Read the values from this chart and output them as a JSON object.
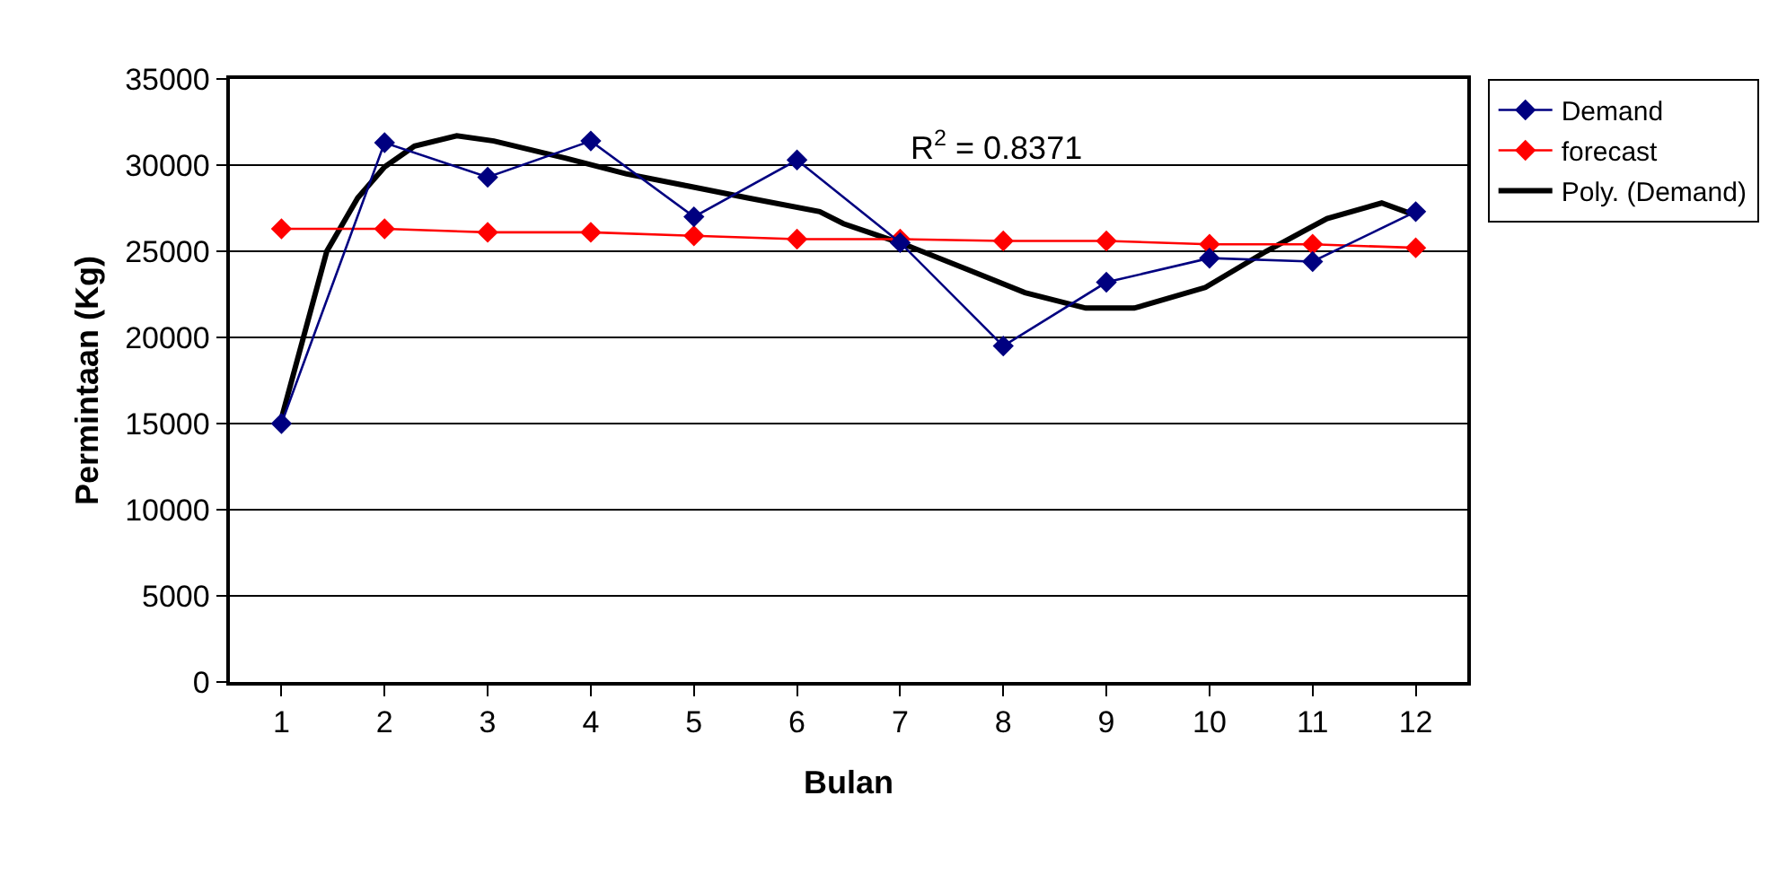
{
  "chart_data": {
    "type": "line",
    "xlabel": "Bulan",
    "ylabel": "Permintaan (Kg)",
    "x": [
      1,
      2,
      3,
      4,
      5,
      6,
      7,
      8,
      9,
      10,
      11,
      12
    ],
    "xlim": [
      0.5,
      12.5
    ],
    "xticks": [
      1,
      2,
      3,
      4,
      5,
      6,
      7,
      8,
      9,
      10,
      11,
      12
    ],
    "ylim": [
      0,
      35000
    ],
    "yticks": [
      0,
      5000,
      10000,
      15000,
      20000,
      25000,
      30000,
      35000
    ],
    "grid": "y",
    "legend": "right",
    "marker": "diamond",
    "annotations": [
      "R$^{2}$ = 0.8371"
    ],
    "series": [
      {
        "name": "Demand",
        "color": "#000080",
        "values": [
          15000,
          31300,
          29300,
          31400,
          27000,
          30300,
          25500,
          19500,
          23200,
          24600,
          24400,
          27300
        ]
      },
      {
        "name": "forecast",
        "color": "#ff0000",
        "values": [
          26300,
          26300,
          26100,
          26100,
          25900,
          25700,
          25700,
          25600,
          25600,
          25400,
          25400,
          25200
        ]
      },
      {
        "name": "Poly. (Demand)",
        "type": "line",
        "marker": "none",
        "color": "#000000",
        "x": [
          1,
          1.44,
          1.74,
          2.0,
          2.29,
          2.7,
          3.06,
          3.76,
          4.34,
          4.93,
          5.52,
          6.22,
          6.45,
          7.04,
          7.63,
          8.21,
          8.8,
          9.27,
          9.96,
          10.55,
          11.14,
          11.67,
          11.99
        ],
        "values": [
          15300,
          25000,
          28100,
          29900,
          31100,
          31700,
          31400,
          30400,
          29500,
          28800,
          28100,
          27300,
          26600,
          25400,
          24000,
          22600,
          21700,
          21700,
          22900,
          25000,
          26900,
          27800,
          27100
        ]
      }
    ]
  }
}
